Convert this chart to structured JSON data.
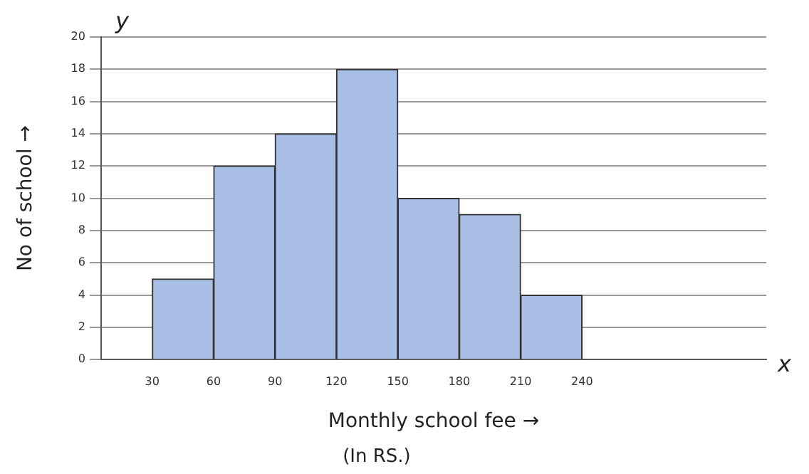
{
  "chart_data": {
    "type": "histogram",
    "bins": [
      30,
      60,
      90,
      120,
      150,
      180,
      210,
      240
    ],
    "values": [
      5,
      12,
      14,
      18,
      10,
      9,
      4
    ],
    "color": "#a9bfe6",
    "xlim": [
      5,
      330
    ],
    "xticks": [
      30,
      60,
      90,
      120,
      150,
      180,
      210,
      240
    ],
    "ylim": [
      0,
      20
    ],
    "yticks": [
      0,
      2,
      4,
      6,
      8,
      10,
      12,
      14,
      16,
      18,
      20
    ],
    "xlabel": "Monthly school fee →",
    "ylabel": "No of school →",
    "annotations": [
      "y",
      "x",
      "(In RS.)"
    ],
    "grid": "y",
    "legend": false
  }
}
